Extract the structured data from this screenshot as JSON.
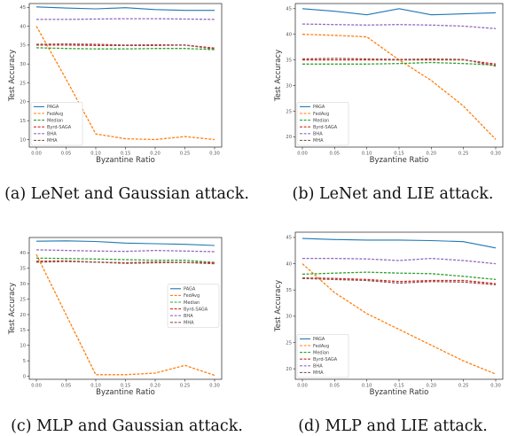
{
  "chart_data": [
    {
      "type": "line",
      "caption": "(a) LeNet and Gaussian attack.",
      "xlabel": "Byzantine Ratio",
      "ylabel": "Test Accuracy",
      "x": [
        0.0,
        0.05,
        0.1,
        0.15,
        0.2,
        0.25,
        0.3
      ],
      "xticks": [
        "0.00",
        "0.05",
        "0.10",
        "0.15",
        "0.20",
        "0.25",
        "0.30"
      ],
      "yticks": [
        10,
        15,
        20,
        25,
        30,
        35,
        40,
        45
      ],
      "ylim": [
        8,
        46
      ],
      "legend_position": "lower-left",
      "series": [
        {
          "name": "PAGA",
          "color": "#1f77b4",
          "dash": "solid",
          "values": [
            45.1,
            44.8,
            44.6,
            44.9,
            44.4,
            44.2,
            44.2
          ]
        },
        {
          "name": "FedAvg",
          "color": "#ff7f0e",
          "dash": "dashed",
          "values": [
            40.0,
            26.0,
            11.5,
            10.2,
            10.0,
            10.8,
            10.0
          ]
        },
        {
          "name": "Median",
          "color": "#2ca02c",
          "dash": "dashed",
          "values": [
            34.3,
            34.1,
            34.0,
            34.0,
            34.1,
            34.1,
            33.8
          ]
        },
        {
          "name": "Byrd-SAGA",
          "color": "#d62728",
          "dash": "dashed",
          "values": [
            35.0,
            35.0,
            34.9,
            34.9,
            34.9,
            35.0,
            34.2
          ]
        },
        {
          "name": "BHA",
          "color": "#9467bd",
          "dash": "dashed",
          "values": [
            41.8,
            41.8,
            41.9,
            42.0,
            42.0,
            41.9,
            41.8
          ]
        },
        {
          "name": "MHA",
          "color": "#8c564b",
          "dash": "dashed",
          "values": [
            35.2,
            35.3,
            35.2,
            35.0,
            35.1,
            35.0,
            34.0
          ]
        }
      ]
    },
    {
      "type": "line",
      "caption": "(b) LeNet and LIE attack.",
      "xlabel": "Byzantine Ratio",
      "ylabel": "Test Accuracy",
      "x": [
        0.0,
        0.05,
        0.1,
        0.15,
        0.2,
        0.25,
        0.3
      ],
      "xticks": [
        "0.00",
        "0.05",
        "0.10",
        "0.15",
        "0.20",
        "0.25",
        "0.30"
      ],
      "yticks": [
        20,
        25,
        30,
        35,
        40,
        45
      ],
      "ylim": [
        18,
        46
      ],
      "legend_position": "lower-left",
      "series": [
        {
          "name": "PAGA",
          "color": "#1f77b4",
          "dash": "solid",
          "values": [
            45.0,
            44.5,
            43.8,
            45.0,
            43.8,
            44.0,
            44.2
          ]
        },
        {
          "name": "FedAvg",
          "color": "#ff7f0e",
          "dash": "dashed",
          "values": [
            40.0,
            39.8,
            39.5,
            35.0,
            31.0,
            26.0,
            19.5
          ]
        },
        {
          "name": "Median",
          "color": "#2ca02c",
          "dash": "dashed",
          "values": [
            34.2,
            34.2,
            34.2,
            34.3,
            34.5,
            34.3,
            34.0
          ]
        },
        {
          "name": "Byrd-SAGA",
          "color": "#d62728",
          "dash": "dashed",
          "values": [
            35.0,
            35.0,
            35.0,
            35.0,
            35.0,
            35.0,
            34.2
          ]
        },
        {
          "name": "BHA",
          "color": "#9467bd",
          "dash": "dashed",
          "values": [
            42.0,
            41.9,
            41.8,
            41.9,
            41.8,
            41.6,
            41.1
          ]
        },
        {
          "name": "MHA",
          "color": "#8c564b",
          "dash": "dashed",
          "values": [
            35.2,
            35.3,
            35.2,
            35.1,
            35.2,
            35.1,
            33.8
          ]
        }
      ]
    },
    {
      "type": "line",
      "caption": "(c) MLP and Gaussian attack.",
      "xlabel": "Byzantine Ratio",
      "ylabel": "Test Accuracy",
      "x": [
        0.0,
        0.05,
        0.1,
        0.15,
        0.2,
        0.25,
        0.3
      ],
      "xticks": [
        "0.00",
        "0.05",
        "0.10",
        "0.15",
        "0.20",
        "0.25",
        "0.30"
      ],
      "yticks": [
        0,
        5,
        10,
        15,
        20,
        25,
        30,
        35,
        40
      ],
      "ylim": [
        -1,
        45
      ],
      "legend_position": "center-right",
      "series": [
        {
          "name": "PAGA",
          "color": "#1f77b4",
          "dash": "solid",
          "values": [
            43.8,
            43.9,
            43.7,
            43.2,
            43.0,
            42.8,
            42.4
          ]
        },
        {
          "name": "FedAvg",
          "color": "#ff7f0e",
          "dash": "dashed",
          "values": [
            39.5,
            20.0,
            0.5,
            0.5,
            1.0,
            3.5,
            0.3
          ]
        },
        {
          "name": "Median",
          "color": "#2ca02c",
          "dash": "dashed",
          "values": [
            38.3,
            38.2,
            38.0,
            37.8,
            37.6,
            37.6,
            36.9
          ]
        },
        {
          "name": "Byrd-SAGA",
          "color": "#d62728",
          "dash": "dashed",
          "values": [
            37.3,
            37.4,
            37.0,
            36.8,
            37.0,
            36.9,
            36.8
          ]
        },
        {
          "name": "BHA",
          "color": "#9467bd",
          "dash": "dashed",
          "values": [
            41.0,
            40.8,
            40.6,
            40.5,
            40.8,
            40.6,
            40.4
          ]
        },
        {
          "name": "MHA",
          "color": "#8c564b",
          "dash": "dashed",
          "values": [
            37.0,
            37.2,
            37.0,
            36.6,
            36.8,
            36.9,
            36.5
          ]
        }
      ]
    },
    {
      "type": "line",
      "caption": "(d) MLP and LIE attack.",
      "xlabel": "Byzantine Ratio",
      "ylabel": "Test Accuracy",
      "x": [
        0.0,
        0.05,
        0.1,
        0.15,
        0.2,
        0.25,
        0.3
      ],
      "xticks": [
        "0.00",
        "0.05",
        "0.10",
        "0.15",
        "0.20",
        "0.25",
        "0.30"
      ],
      "yticks": [
        20,
        25,
        30,
        35,
        40,
        45
      ],
      "ylim": [
        18,
        46
      ],
      "legend_position": "lower-left",
      "series": [
        {
          "name": "PAGA",
          "color": "#1f77b4",
          "dash": "solid",
          "values": [
            44.8,
            44.6,
            44.5,
            44.5,
            44.4,
            44.2,
            43.0
          ]
        },
        {
          "name": "FedAvg",
          "color": "#ff7f0e",
          "dash": "dashed",
          "values": [
            40.0,
            34.5,
            30.5,
            27.5,
            24.5,
            21.5,
            19.0
          ]
        },
        {
          "name": "Median",
          "color": "#2ca02c",
          "dash": "dashed",
          "values": [
            38.0,
            38.2,
            38.4,
            38.2,
            38.1,
            37.6,
            37.0
          ]
        },
        {
          "name": "Byrd-SAGA",
          "color": "#d62728",
          "dash": "dashed",
          "values": [
            37.3,
            37.2,
            37.0,
            36.6,
            36.8,
            36.8,
            36.2
          ]
        },
        {
          "name": "BHA",
          "color": "#9467bd",
          "dash": "dashed",
          "values": [
            41.0,
            41.0,
            40.9,
            40.6,
            41.0,
            40.6,
            40.0
          ]
        },
        {
          "name": "MHA",
          "color": "#8c564b",
          "dash": "dashed",
          "values": [
            37.2,
            37.0,
            36.8,
            36.3,
            36.6,
            36.5,
            36.0
          ]
        }
      ]
    }
  ]
}
